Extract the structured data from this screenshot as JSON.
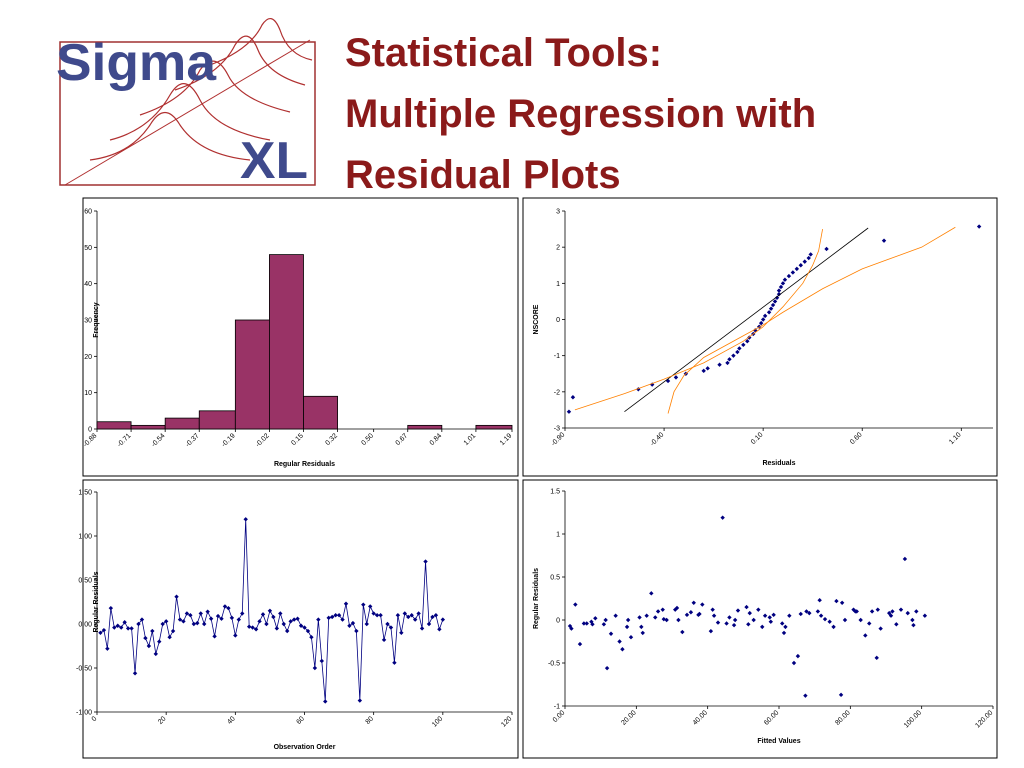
{
  "slide": {
    "title": [
      "Statistical Tools:",
      "Multiple Regression with",
      "Residual Plots"
    ]
  },
  "logo": {
    "word": "Sigma",
    "mark": "XL"
  },
  "chart_data": [
    {
      "type": "histogram",
      "xlabel": "Regular Residuals",
      "ylabel": "Frequency",
      "color": "#993366",
      "grid": false,
      "bins": [
        -0.88,
        -0.71,
        -0.54,
        -0.37,
        -0.19,
        -0.02,
        0.15,
        0.32,
        0.5,
        0.67,
        0.84,
        1.01,
        1.19
      ],
      "counts": [
        2,
        1,
        3,
        5,
        30,
        48,
        9,
        0,
        0,
        1,
        0,
        1
      ],
      "xlim": [
        -0.88,
        1.19
      ],
      "xticks": [
        -0.88,
        -0.71,
        -0.54,
        -0.37,
        -0.19,
        -0.02,
        0.15,
        0.32,
        {
          "value": 0.5,
          "label": "0.50"
        },
        0.67,
        0.84,
        1.01,
        1.19
      ],
      "ylim": [
        0,
        60
      ],
      "yticks": [
        0,
        10,
        20,
        30,
        40,
        50,
        60
      ]
    },
    {
      "type": "scatter",
      "xlabel": "Residuals",
      "ylabel": "NSCORE",
      "grid": false,
      "xlim": [
        -0.9,
        1.26
      ],
      "xticks": [
        {
          "value": -0.9,
          "label": "-0.90"
        },
        {
          "value": -0.4,
          "label": "-0.40"
        },
        {
          "value": 0.1,
          "label": "0.10"
        },
        {
          "value": 0.6,
          "label": "0.60"
        },
        {
          "value": 1.1,
          "label": "1.10"
        }
      ],
      "ylim": [
        -3,
        3
      ],
      "yticks": [
        -3,
        -2,
        -1,
        0,
        1,
        2,
        3
      ],
      "series": [
        {
          "mode": "markers",
          "color": "#000080",
          "x": [
            -0.88,
            -0.86,
            -0.53,
            -0.46,
            -0.38,
            -0.34,
            -0.29,
            -0.2,
            -0.18,
            -0.12,
            -0.08,
            -0.07,
            -0.05,
            -0.03,
            -0.02,
            0.0,
            0.02,
            0.03,
            0.05,
            0.06,
            0.08,
            0.09,
            0.1,
            0.11,
            0.13,
            0.14,
            0.15,
            0.16,
            0.17,
            0.18,
            0.18,
            0.19,
            0.2,
            0.21,
            0.23,
            0.25,
            0.27,
            0.29,
            0.31,
            0.33,
            0.34,
            0.42,
            0.71,
            1.19
          ],
          "values": [
            -2.55,
            -2.15,
            -1.93,
            -1.8,
            -1.7,
            -1.6,
            -1.5,
            -1.42,
            -1.35,
            -1.25,
            -1.2,
            -1.1,
            -1.0,
            -0.9,
            -0.8,
            -0.7,
            -0.6,
            -0.5,
            -0.4,
            -0.3,
            -0.2,
            -0.1,
            0.0,
            0.1,
            0.2,
            0.3,
            0.4,
            0.5,
            0.6,
            0.7,
            0.8,
            0.9,
            1.0,
            1.1,
            1.2,
            1.3,
            1.4,
            1.5,
            1.6,
            1.7,
            1.8,
            1.95,
            2.18,
            2.57
          ]
        },
        {
          "mode": "line",
          "color": "#000000",
          "x": [
            -0.6,
            0.63
          ],
          "values": [
            -2.55,
            2.53
          ]
        },
        {
          "mode": "line",
          "color": "#ff8000",
          "x": [
            -0.85,
            -0.6,
            -0.4,
            -0.2,
            0.0,
            0.1,
            0.2,
            0.3,
            0.35,
            0.38,
            0.4
          ],
          "values": [
            -2.5,
            -2.05,
            -1.65,
            -1.2,
            -0.6,
            -0.2,
            0.35,
            1.0,
            1.5,
            1.9,
            2.5
          ]
        },
        {
          "mode": "line",
          "color": "#ff8000",
          "x": [
            -0.38,
            -0.35,
            -0.3,
            -0.2,
            0.0,
            0.1,
            0.2,
            0.4,
            0.6,
            0.9,
            1.07
          ],
          "values": [
            -2.6,
            -2.0,
            -1.55,
            -1.05,
            -0.45,
            -0.15,
            0.2,
            0.85,
            1.4,
            2.0,
            2.55
          ]
        }
      ]
    },
    {
      "type": "line",
      "xlabel": "Observation Order",
      "ylabel": "Regular Residuals",
      "grid": false,
      "xlim": [
        0,
        120
      ],
      "xticks": [
        0,
        20,
        40,
        60,
        80,
        100,
        120
      ],
      "ylim": [
        -1,
        1.5
      ],
      "yticks": [
        {
          "value": -1,
          "label": "-1.00"
        },
        {
          "value": -0.5,
          "label": "-0.50"
        },
        {
          "value": 0,
          "label": "0.00"
        },
        {
          "value": 0.5,
          "label": "0.50"
        },
        {
          "value": 1,
          "label": "1.00"
        },
        {
          "value": 1.5,
          "label": "1.50"
        }
      ],
      "series": [
        {
          "mode": "line+markers",
          "color": "#000080",
          "x": [
            1,
            2,
            3,
            4,
            5,
            6,
            7,
            8,
            9,
            10,
            11,
            12,
            13,
            14,
            15,
            16,
            17,
            18,
            19,
            20,
            21,
            22,
            23,
            24,
            25,
            26,
            27,
            28,
            29,
            30,
            31,
            32,
            33,
            34,
            35,
            36,
            37,
            38,
            39,
            40,
            41,
            42,
            43,
            44,
            45,
            46,
            47,
            48,
            49,
            50,
            51,
            52,
            53,
            54,
            55,
            56,
            57,
            58,
            59,
            60,
            61,
            62,
            63,
            64,
            65,
            66,
            67,
            68,
            69,
            70,
            71,
            72,
            73,
            74,
            75,
            76,
            77,
            78,
            79,
            80,
            81,
            82,
            83,
            84,
            85,
            86,
            87,
            88,
            89,
            90,
            91,
            92,
            93,
            94,
            95,
            96,
            97,
            98,
            99,
            100
          ],
          "values": [
            -0.1,
            -0.07,
            -0.28,
            0.18,
            -0.04,
            -0.02,
            -0.04,
            0.02,
            -0.05,
            -0.05,
            -0.56,
            0.0,
            0.05,
            -0.16,
            -0.25,
            -0.08,
            -0.34,
            -0.2,
            0.0,
            0.03,
            -0.15,
            -0.08,
            0.31,
            0.05,
            0.03,
            0.12,
            0.1,
            0.0,
            0.01,
            0.12,
            0.0,
            0.14,
            0.06,
            -0.14,
            0.09,
            0.06,
            0.2,
            0.18,
            0.07,
            -0.13,
            0.05,
            0.12,
            1.19,
            -0.03,
            -0.04,
            -0.06,
            0.03,
            0.11,
            0.0,
            0.15,
            0.08,
            -0.05,
            0.12,
            0.0,
            -0.08,
            0.03,
            0.05,
            0.06,
            -0.02,
            -0.04,
            -0.08,
            -0.15,
            -0.5,
            0.05,
            -0.42,
            -0.88,
            0.07,
            0.08,
            0.1,
            0.1,
            0.05,
            0.23,
            -0.02,
            0.01,
            -0.08,
            -0.87,
            0.22,
            0.0,
            0.2,
            0.12,
            0.1,
            0.1,
            -0.18,
            0.0,
            -0.04,
            -0.44,
            0.1,
            -0.1,
            0.12,
            0.08,
            0.1,
            0.05,
            0.12,
            -0.05,
            0.71,
            0.0,
            0.08,
            0.1,
            -0.06,
            0.05
          ]
        }
      ]
    },
    {
      "type": "scatter",
      "xlabel": "Fitted Values",
      "ylabel": "Regular Residuals",
      "grid": false,
      "xlim": [
        0,
        120
      ],
      "xticks": [
        {
          "value": 0,
          "label": "0.00"
        },
        {
          "value": 20,
          "label": "20.00"
        },
        {
          "value": 40,
          "label": "40.00"
        },
        {
          "value": 60,
          "label": "60.00"
        },
        {
          "value": 80,
          "label": "80.00"
        },
        {
          "value": 100,
          "label": "100.00"
        },
        {
          "value": 120,
          "label": "120.00"
        }
      ],
      "ylim": [
        -1,
        1.5
      ],
      "yticks": [
        -1,
        -0.5,
        0,
        0.5,
        1,
        1.5
      ],
      "series": [
        {
          "mode": "markers",
          "color": "#000080",
          "x": [
            1.8,
            1.4,
            4.2,
            2.9,
            5.3,
            7.4,
            6.1,
            8.5,
            7.7,
            10.9,
            11.8,
            11.4,
            14.2,
            12.9,
            15.3,
            17.4,
            16.1,
            18.5,
            17.7,
            20.9,
            21.8,
            21.4,
            24.2,
            22.9,
            25.3,
            27.4,
            26.1,
            28.5,
            27.7,
            30.9,
            31.8,
            31.4,
            34.2,
            32.9,
            35.3,
            37.4,
            36.1,
            38.5,
            37.7,
            40.9,
            41.8,
            41.4,
            44.2,
            42.9,
            45.3,
            47.4,
            46.1,
            48.5,
            47.7,
            50.9,
            51.8,
            51.4,
            54.2,
            52.9,
            55.3,
            57.4,
            56.1,
            58.5,
            57.7,
            60.9,
            61.8,
            61.4,
            64.2,
            62.9,
            65.3,
            67.4,
            66.1,
            68.5,
            67.7,
            70.9,
            71.8,
            71.4,
            74.2,
            72.9,
            75.3,
            77.4,
            76.1,
            78.5,
            77.7,
            80.9,
            81.8,
            81.4,
            84.2,
            82.9,
            85.3,
            87.4,
            86.1,
            88.5,
            87.7,
            90.9,
            91.8,
            91.4,
            94.2,
            92.9,
            95.3,
            97.4,
            96.1,
            98.5,
            97.7,
            100.9
          ],
          "values": [
            -0.1,
            -0.07,
            -0.28,
            0.18,
            -0.04,
            -0.02,
            -0.04,
            0.02,
            -0.05,
            -0.05,
            -0.56,
            0.0,
            0.05,
            -0.16,
            -0.25,
            -0.08,
            -0.34,
            -0.2,
            0.0,
            0.03,
            -0.15,
            -0.08,
            0.31,
            0.05,
            0.03,
            0.12,
            0.1,
            0.0,
            0.01,
            0.12,
            0.0,
            0.14,
            0.06,
            -0.14,
            0.09,
            0.06,
            0.2,
            0.18,
            0.07,
            -0.13,
            0.05,
            0.12,
            1.19,
            -0.03,
            -0.04,
            -0.06,
            0.03,
            0.11,
            0.0,
            0.15,
            0.08,
            -0.05,
            0.12,
            0.0,
            -0.08,
            0.03,
            0.05,
            0.06,
            -0.02,
            -0.04,
            -0.08,
            -0.15,
            -0.5,
            0.05,
            -0.42,
            -0.88,
            0.07,
            0.08,
            0.1,
            0.1,
            0.05,
            0.23,
            -0.02,
            0.01,
            -0.08,
            -0.87,
            0.22,
            0.0,
            0.2,
            0.12,
            0.1,
            0.1,
            -0.18,
            0.0,
            -0.04,
            -0.44,
            0.1,
            -0.1,
            0.12,
            0.08,
            0.1,
            0.05,
            0.12,
            -0.05,
            0.71,
            0.0,
            0.08,
            0.1,
            -0.06,
            0.05
          ]
        }
      ]
    }
  ]
}
